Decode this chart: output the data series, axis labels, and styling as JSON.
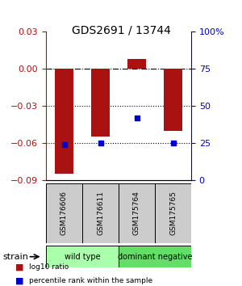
{
  "title": "GDS2691 / 13744",
  "samples": [
    "GSM176606",
    "GSM176611",
    "GSM175764",
    "GSM175765"
  ],
  "log10_ratios": [
    -0.085,
    -0.055,
    0.008,
    -0.05
  ],
  "percentile_ranks": [
    24,
    25,
    42,
    25
  ],
  "bar_color": "#aa1111",
  "square_color": "#0000cc",
  "ylim_left": [
    -0.09,
    0.03
  ],
  "ylim_right": [
    0,
    100
  ],
  "yticks_left": [
    -0.09,
    -0.06,
    -0.03,
    0,
    0.03
  ],
  "yticks_right": [
    0,
    25,
    50,
    75,
    100
  ],
  "ytick_labels_right": [
    "0",
    "25",
    "50",
    "75",
    "100%"
  ],
  "dotted_lines": [
    -0.03,
    -0.06
  ],
  "groups": [
    {
      "label": "wild type",
      "samples": [
        0,
        1
      ],
      "color": "#aaffaa"
    },
    {
      "label": "dominant negative",
      "samples": [
        2,
        3
      ],
      "color": "#66dd66"
    }
  ],
  "strain_label": "strain",
  "legend": [
    {
      "color": "#aa1111",
      "label": "log10 ratio"
    },
    {
      "color": "#0000cc",
      "label": "percentile rank within the sample"
    }
  ],
  "bar_width": 0.5,
  "label_box_color": "#cccccc"
}
